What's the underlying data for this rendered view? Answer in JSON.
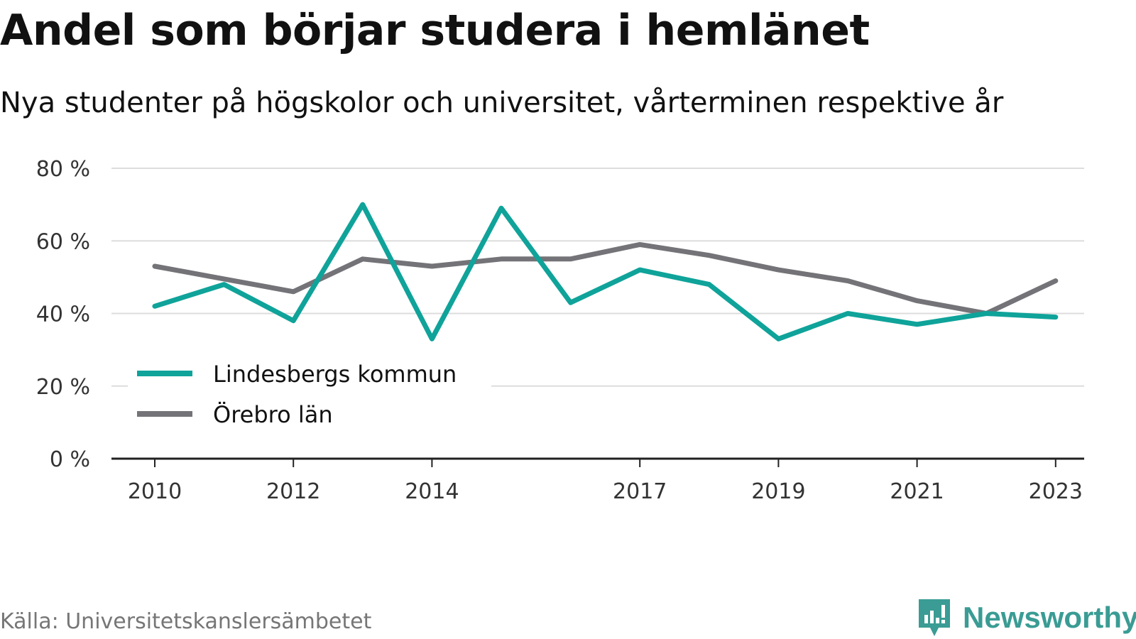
{
  "header": {
    "title": "Andel som börjar studera i hemlänet",
    "subtitle": "Nya studenter på högskolor och universitet, vårterminen respektive år"
  },
  "footer": {
    "source": "Källa: Universitetskanslersämbetet",
    "brand": "Newsworthy",
    "brand_icon": "newsworthy-logo-icon"
  },
  "colors": {
    "lindesberg": "#0fa39a",
    "orebro": "#737378",
    "grid": "#dddddd",
    "axis": "#222222",
    "brand": "#3a9c94"
  },
  "chart_data": {
    "type": "line",
    "x": [
      2010,
      2011,
      2012,
      2013,
      2014,
      2015,
      2016,
      2017,
      2018,
      2019,
      2020,
      2021,
      2022,
      2023
    ],
    "x_tick_labels": [
      "2010",
      "2012",
      "2014",
      "2017",
      "2019",
      "2021",
      "2023"
    ],
    "y_tick_labels": [
      "0 %",
      "20 %",
      "40 %",
      "60 %",
      "80 %"
    ],
    "y_ticks": [
      0,
      20,
      40,
      60,
      80
    ],
    "ylim": [
      0,
      80
    ],
    "grid": true,
    "legend_position": "bottom-left",
    "series": [
      {
        "name": "Lindesbergs kommun",
        "color": "#0fa39a",
        "values": [
          42,
          48,
          38,
          70,
          33,
          69,
          43,
          52,
          48,
          33,
          40,
          37,
          40,
          39
        ]
      },
      {
        "name": "Örebro län",
        "color": "#737378",
        "values": [
          53,
          49.5,
          46,
          55,
          53,
          55,
          55,
          59,
          56,
          52,
          49,
          43.5,
          40,
          49
        ]
      }
    ]
  }
}
